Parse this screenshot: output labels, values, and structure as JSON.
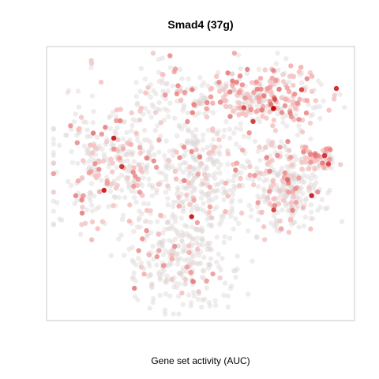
{
  "chart_data": {
    "type": "scatter",
    "title": "Smad4 (37g)",
    "subtitle": "",
    "xlabel": "Gene set activity (AUC)",
    "ylabel": "",
    "grid": false,
    "axes_visible": false,
    "legend": "none",
    "xlim": [
      0,
      100
    ],
    "ylim": [
      0,
      100
    ],
    "color_scale": {
      "low": "#d9d9d9",
      "high": "#c00000"
    },
    "clusters": [
      {
        "id": "top-right",
        "cx": 73,
        "cy": 83,
        "sx": 9,
        "sy": 6,
        "n": 260,
        "activity": 0.55
      },
      {
        "id": "top-mid",
        "cx": 44,
        "cy": 83,
        "sx": 10,
        "sy": 5,
        "n": 110,
        "activity": 0.25
      },
      {
        "id": "left",
        "cx": 20,
        "cy": 56,
        "sx": 10,
        "sy": 13,
        "n": 330,
        "activity": 0.3
      },
      {
        "id": "center",
        "cx": 50,
        "cy": 55,
        "sx": 8,
        "sy": 11,
        "n": 280,
        "activity": 0.15
      },
      {
        "id": "right-mid",
        "cx": 77,
        "cy": 52,
        "sx": 7,
        "sy": 9,
        "n": 200,
        "activity": 0.3
      },
      {
        "id": "right-arm",
        "cx": 90,
        "cy": 60,
        "sx": 3,
        "sy": 2,
        "n": 50,
        "activity": 0.65
      },
      {
        "id": "lower-right",
        "cx": 82,
        "cy": 44,
        "sx": 4,
        "sy": 6,
        "n": 90,
        "activity": 0.15
      },
      {
        "id": "bottom",
        "cx": 43,
        "cy": 23,
        "sx": 9,
        "sy": 11,
        "n": 300,
        "activity": 0.12
      }
    ]
  }
}
